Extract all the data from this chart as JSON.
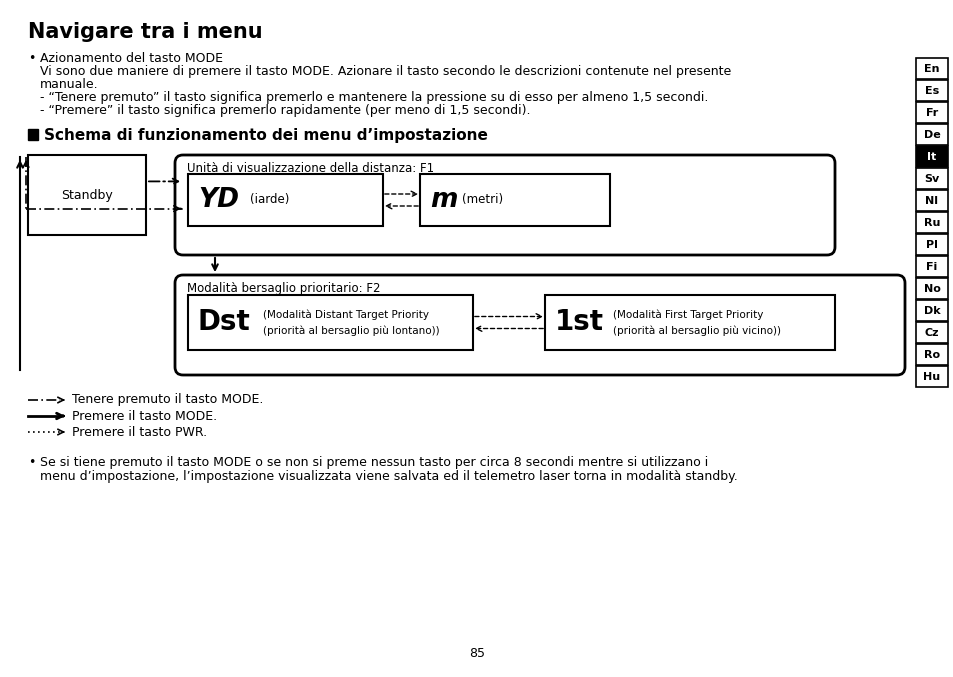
{
  "title": "Navigare tra i menu",
  "heading2": "Schema di funzionamento dei menu d’impostazione",
  "bullet1_title": "Azionamento del tasto MODE",
  "bullet1_line1": "Vi sono due maniere di premere il tasto MODE. Azionare il tasto secondo le descrizioni contenute nel presente",
  "bullet1_line2": "manuale.",
  "bullet1_dash1": "- “Tenere premuto” il tasto significa premerlo e mantenere la pressione su di esso per almeno 1,5 secondi.",
  "bullet1_dash2": "- “Premere” il tasto significa premerlo rapidamente (per meno di 1,5 secondi).",
  "standby_label": "Standby",
  "f1_label": "Unità di visualizzazione della distanza: F1",
  "yd_label": "YD",
  "yd_sub": "(iarde)",
  "m_label": "m",
  "m_sub": "(metri)",
  "f2_label": "Modalità bersaglio prioritario: F2",
  "dst_label": "Dst",
  "dst_desc1": "(Modalità Distant Target Priority",
  "dst_desc2": "(priorità al bersaglio più lontano))",
  "first_label": "1st",
  "first_desc1": "(Modalità First Target Priority",
  "first_desc2": "(priorità al bersaglio più vicino))",
  "legend1": "Tenere premuto il tasto MODE.",
  "legend2": "Premere il tasto MODE.",
  "legend3": "Premere il tasto PWR.",
  "footer_line1": "Se si tiene premuto il tasto MODE o se non si preme nessun tasto per circa 8 secondi mentre si utilizzano i",
  "footer_line2": "menu d’impostazione, l’impostazione visualizzata viene salvata ed il telemetro laser torna in modalità standby.",
  "lang_tabs": [
    "En",
    "Es",
    "Fr",
    "De",
    "It",
    "Sv",
    "Nl",
    "Ru",
    "Pl",
    "Fi",
    "No",
    "Dk",
    "Cz",
    "Ro",
    "Hu"
  ],
  "active_tab": "It",
  "page_number": "85",
  "bg_color": "#ffffff",
  "text_color": "#000000",
  "tab_bg": "#000000",
  "tab_fg": "#ffffff",
  "tab_inactive_bg": "#ffffff",
  "tab_border": "#000000"
}
